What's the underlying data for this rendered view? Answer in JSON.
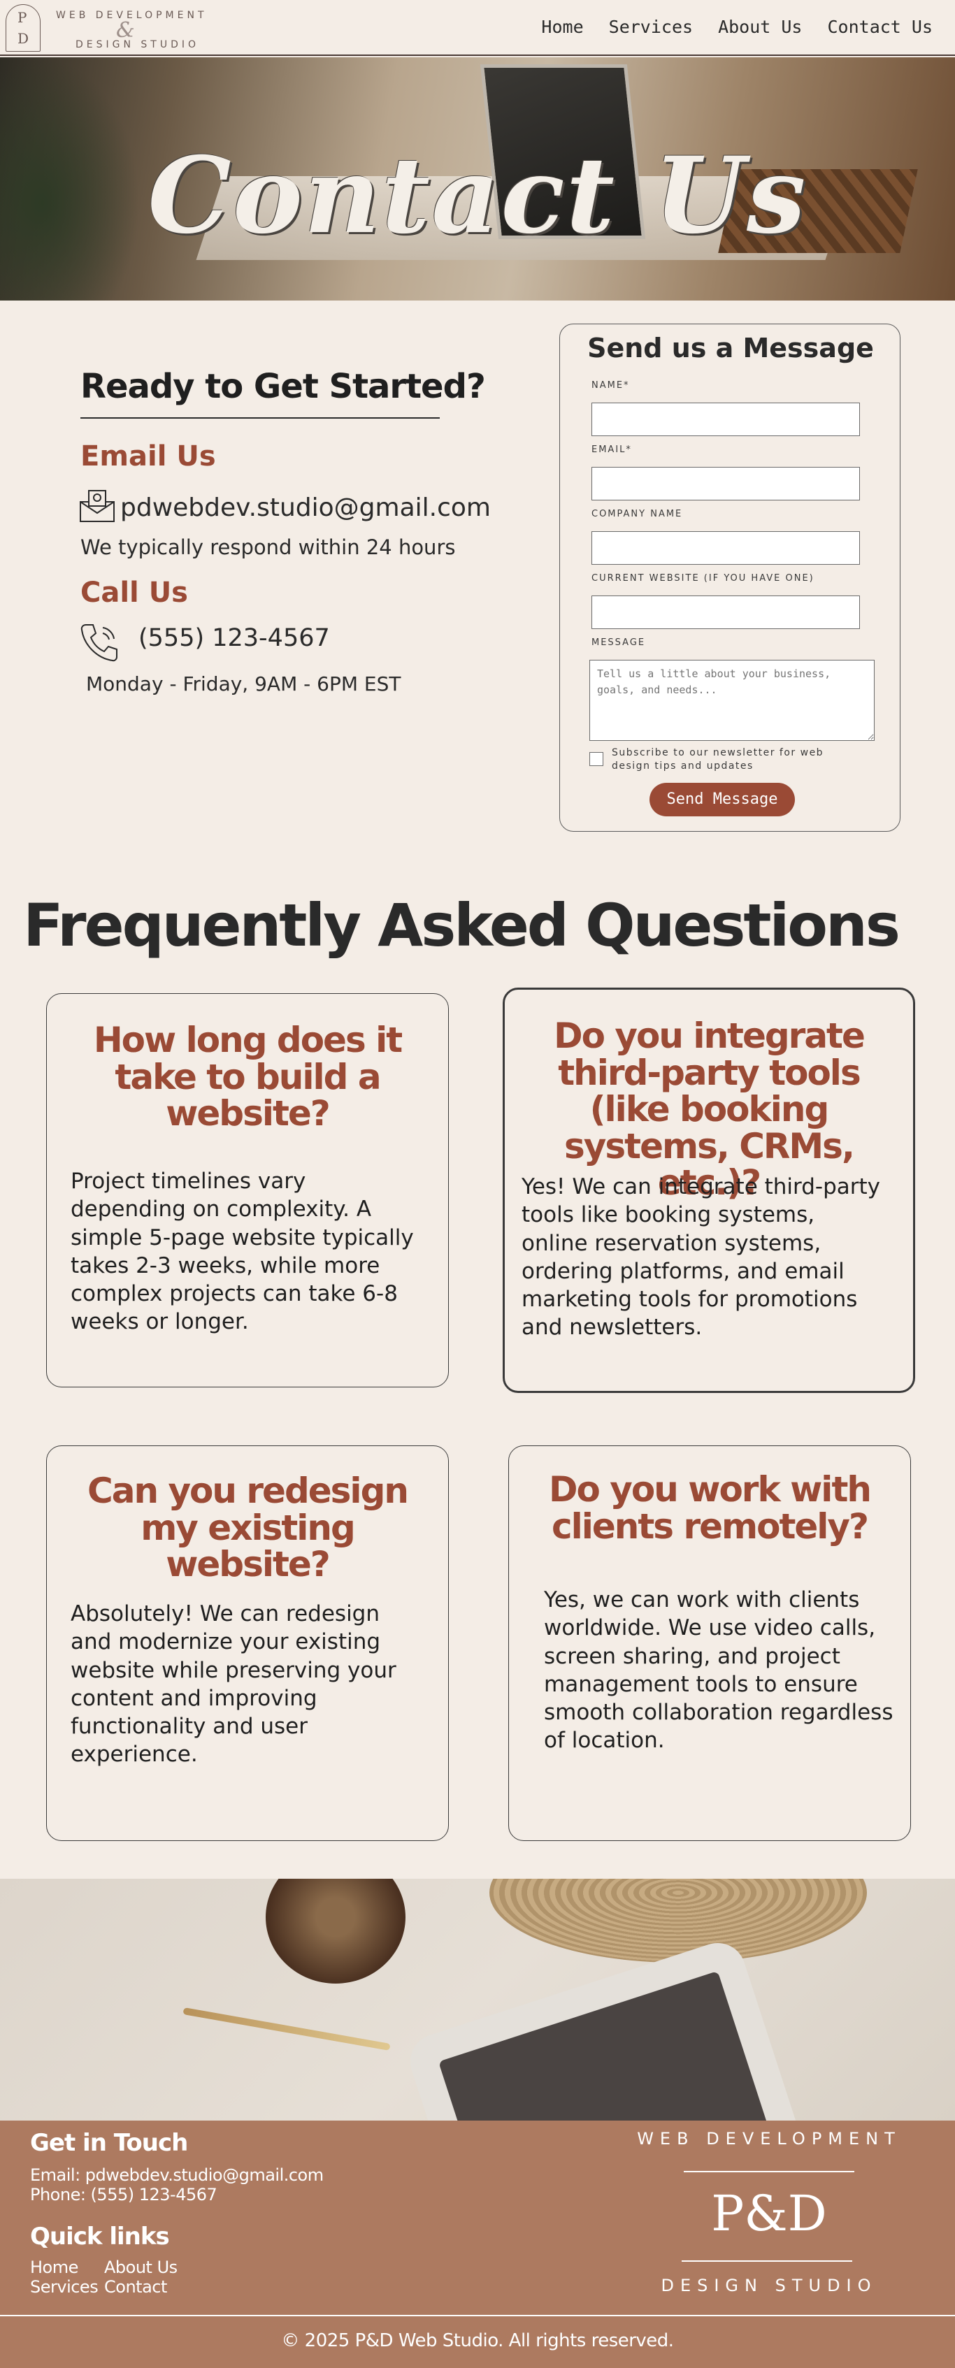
{
  "header": {
    "logo": {
      "letter_p": "P",
      "letter_d": "D",
      "top": "WEB DEVELOPMENT",
      "amp": "&",
      "bottom": "DESIGN STUDIO"
    },
    "nav": [
      "Home",
      "Services",
      "About Us",
      "Contact Us"
    ]
  },
  "hero": {
    "title": "Contact Us"
  },
  "contact": {
    "heading": "Ready to Get Started?",
    "email_heading": "Email Us",
    "email": "pdwebdev.studio@gmail.com",
    "respond": "We typically respond within 24 hours",
    "call_heading": "Call Us",
    "phone": "(555) 123-4567",
    "hours": "Monday - Friday, 9AM - 6PM EST"
  },
  "form": {
    "title": "Send us a Message",
    "name_label": "NAME*",
    "email_label": "EMAIL*",
    "company_label": "COMPANY NAME",
    "website_label": "CURRENT WEBSITE (IF YOU HAVE ONE)",
    "message_label": "MESSAGE",
    "message_placeholder": "Tell us a little about your business, goals, and needs...",
    "subscribe_label": "Subscribe to our newsletter for web design tips and updates",
    "submit": "Send Message"
  },
  "faq": {
    "heading": "Frequently Asked Questions",
    "items": [
      {
        "q": "How long does it take to build a website?",
        "a": "Project timelines vary depending on complexity. A simple 5-page website typically takes 2-3 weeks, while more complex projects can take 6-8 weeks or longer."
      },
      {
        "q": "Do you integrate third-party tools (like booking systems, CRMs, etc.)?",
        "a": "Yes! We can integrate third-party tools like booking systems, online reservation systems, ordering platforms, and email marketing tools for promotions and newsletters."
      },
      {
        "q": "Can you redesign my existing website?",
        "a": "Absolutely! We can redesign and modernize your existing website while preserving your content and improving functionality and user experience."
      },
      {
        "q": "Do you work with clients remotely?",
        "a": "Yes, we can work with clients worldwide. We use video calls, screen sharing, and project management tools to ensure smooth collaboration regardless of location."
      }
    ]
  },
  "footer": {
    "get_in_touch": "Get in Touch",
    "email_line": "Email: pdwebdev.studio@gmail.com",
    "phone_line": "Phone: (555) 123-4567",
    "quick_links": "Quick links",
    "links": [
      "Home",
      "About Us",
      "Services",
      "Contact"
    ],
    "logo_top": "WEB DEVELOPMENT",
    "logo_pd": "P&D",
    "logo_bottom": "DESIGN STUDIO",
    "copyright": "© 2025 P&D Web Studio. All rights reserved."
  },
  "colors": {
    "background": "#f4ede6",
    "accent": "#9a4a35",
    "footer": "#ad7a60"
  }
}
